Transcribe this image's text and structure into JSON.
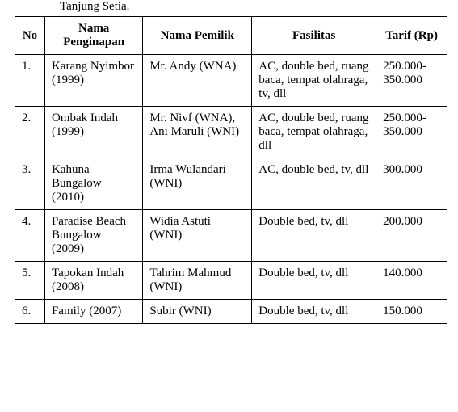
{
  "caption": "Tanjung Setia.",
  "table": {
    "columns": [
      "No",
      "Nama Penginapan",
      "Nama Pemilik",
      "Fasilitas",
      "Tarif (Rp)"
    ],
    "rows": [
      {
        "no": "1.",
        "nama_penginapan": "Karang Nyimbor (1999)",
        "nama_pemilik": "Mr. Andy (WNA)",
        "fasilitas": "AC, double bed, ruang baca, tempat olahraga, tv, dll",
        "tarif": "250.000-350.000"
      },
      {
        "no": "2.",
        "nama_penginapan": "Ombak Indah (1999)",
        "nama_pemilik": "Mr. Nivf (WNA), Ani Maruli (WNI)",
        "fasilitas": "AC, double bed, ruang baca, tempat olahraga, dll",
        "tarif": "250.000-350.000"
      },
      {
        "no": "3.",
        "nama_penginapan": "Kahuna Bungalow (2010)",
        "nama_pemilik": "Irma Wulandari (WNI)",
        "fasilitas": "AC, double bed, tv, dll",
        "tarif": "300.000"
      },
      {
        "no": "4.",
        "nama_penginapan": "Paradise Beach Bungalow (2009)",
        "nama_pemilik": "Widia Astuti (WNI)",
        "fasilitas": "Double bed, tv, dll",
        "tarif": "200.000"
      },
      {
        "no": "5.",
        "nama_penginapan": "Tapokan Indah (2008)",
        "nama_pemilik": "Tahrim Mahmud (WNI)",
        "fasilitas": "Double bed, tv, dll",
        "tarif": "140.000"
      },
      {
        "no": "6.",
        "nama_penginapan": "Family (2007)",
        "nama_pemilik": "Subir (WNI)",
        "fasilitas": "Double bed, tv, dll",
        "tarif": "150.000"
      }
    ]
  },
  "style": {
    "font_family": "Times New Roman",
    "font_size": 15,
    "text_color": "#000000",
    "background_color": "#ffffff",
    "border_color": "#000000",
    "col_widths": {
      "no": 34,
      "nama_penginapan": 116,
      "nama_pemilik": 129,
      "fasilitas": 147,
      "tarif": 84
    }
  }
}
